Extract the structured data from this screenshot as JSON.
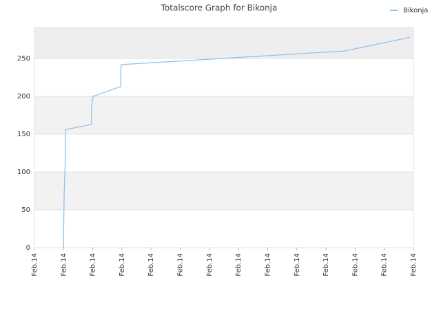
{
  "chart_data": {
    "type": "line",
    "title": "Totalscore Graph for Bikonja",
    "x": [
      1.0,
      1.0,
      1.02,
      1.06,
      1.06,
      1.96,
      1.96,
      2.01,
      2.96,
      2.96,
      2.98,
      10.64,
      12.88
    ],
    "series": [
      {
        "name": "Bikonja",
        "color": "#8fc1f0",
        "values": [
          0,
          23,
          73,
          118,
          156,
          163,
          186,
          200,
          213,
          232,
          242,
          260,
          278
        ]
      }
    ],
    "xlim": [
      0,
      13
    ],
    "xticks": [
      {
        "value": 0,
        "label": "Feb.14"
      },
      {
        "value": 1,
        "label": "Feb.14"
      },
      {
        "value": 2,
        "label": "Feb.14"
      },
      {
        "value": 3,
        "label": "Feb.14"
      },
      {
        "value": 4,
        "label": "Feb.14"
      },
      {
        "value": 5,
        "label": "Feb.14"
      },
      {
        "value": 6,
        "label": "Feb.14"
      },
      {
        "value": 7,
        "label": "Feb.14"
      },
      {
        "value": 8,
        "label": "Feb.14"
      },
      {
        "value": 9,
        "label": "Feb.14"
      },
      {
        "value": 10,
        "label": "Feb.14"
      },
      {
        "value": 11,
        "label": "Feb.14"
      },
      {
        "value": 12,
        "label": "Feb.14"
      },
      {
        "value": 13,
        "label": "Feb.14"
      }
    ],
    "ylim": [
      0,
      291
    ],
    "yticks": [
      0,
      50,
      100,
      150,
      200,
      250
    ],
    "grid": true,
    "legend": "top-right"
  }
}
